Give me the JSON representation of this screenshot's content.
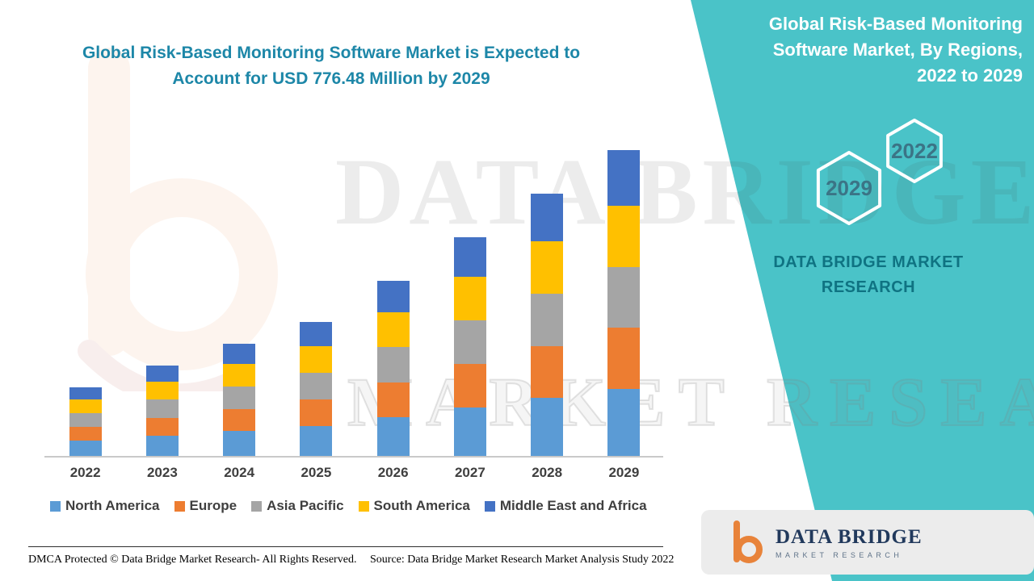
{
  "left": {
    "title": "Global Risk-Based Monitoring Software Market is Expected to Account for USD 776.48 Million by 2029"
  },
  "right_panel": {
    "heading": "Global Risk-Based Monitoring Software Market, By Regions, 2022 to 2029",
    "hex_year_top": "2022",
    "hex_year_bottom": "2029",
    "brand_line1": "DATA BRIDGE MARKET",
    "brand_line2": "RESEARCH"
  },
  "watermark": {
    "line1": "DATA BRIDGE",
    "line2": "MARKET RESEARCH"
  },
  "footer": {
    "dmca": "DMCA Protected © Data Bridge Market Research- All Rights Reserved.",
    "source": "Source: Data Bridge Market Research Market Analysis Study 2022"
  },
  "logo_card": {
    "name": "DATA BRIDGE",
    "sub": "MARKET RESEARCH"
  },
  "chart_data": {
    "type": "bar",
    "stacked": true,
    "title": "Global Risk-Based Monitoring Software Market is Expected to Account for USD 776.48 Million by 2029",
    "xlabel": "",
    "ylabel": "",
    "ylim": [
      0,
      800
    ],
    "grid": false,
    "legend_position": "bottom",
    "categories": [
      "2022",
      "2023",
      "2024",
      "2025",
      "2026",
      "2027",
      "2028",
      "2029"
    ],
    "series": [
      {
        "name": "North America",
        "color": "#5B9BD5",
        "values": [
          38,
          51,
          63,
          75,
          98,
          123,
          147,
          171
        ]
      },
      {
        "name": "Europe",
        "color": "#ED7D31",
        "values": [
          35,
          46,
          57,
          68,
          89,
          111,
          133,
          155
        ]
      },
      {
        "name": "Asia Pacific",
        "color": "#A5A5A5",
        "values": [
          35,
          46,
          57,
          68,
          89,
          111,
          133,
          155
        ]
      },
      {
        "name": "South America",
        "color": "#FFC000",
        "values": [
          35,
          46,
          57,
          68,
          89,
          111,
          133,
          155
        ]
      },
      {
        "name": "Middle East and Africa",
        "color": "#4472C4",
        "values": [
          31,
          41,
          52,
          62,
          80,
          100,
          120,
          140.48
        ]
      }
    ],
    "totals": [
      174,
      230,
      286,
      341,
      445,
      556,
      666,
      776.48
    ]
  }
}
